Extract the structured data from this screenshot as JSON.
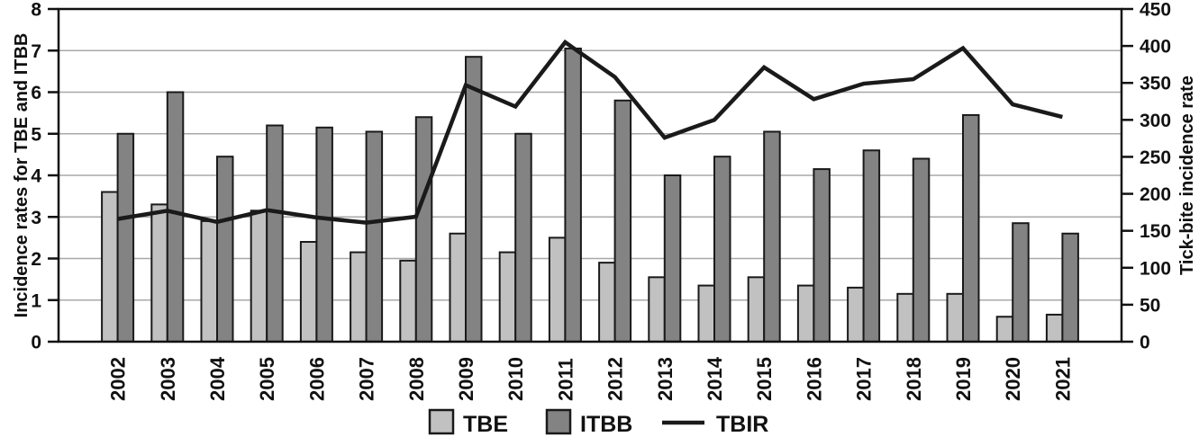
{
  "chart_data": {
    "type": "bar",
    "subtype": "grouped-bars-with-line-overlay",
    "categories": [
      "2002",
      "2003",
      "2004",
      "2005",
      "2006",
      "2007",
      "2008",
      "2009",
      "2010",
      "2011",
      "2012",
      "2013",
      "2014",
      "2015",
      "2016",
      "2017",
      "2018",
      "2019",
      "2020",
      "2021"
    ],
    "series": [
      {
        "name": "TBE",
        "type": "bar",
        "axis": "left",
        "color": "#c1c1c1",
        "values": [
          3.6,
          3.3,
          2.9,
          3.15,
          2.4,
          2.15,
          1.95,
          2.6,
          2.15,
          2.5,
          1.9,
          1.55,
          1.35,
          1.55,
          1.35,
          1.3,
          1.15,
          1.15,
          0.6,
          0.65
        ]
      },
      {
        "name": "ITBB",
        "type": "bar",
        "axis": "left",
        "color": "#838383",
        "values": [
          5.0,
          6.0,
          4.45,
          5.2,
          5.15,
          5.05,
          5.4,
          6.85,
          5.0,
          7.05,
          5.8,
          4.0,
          4.45,
          5.05,
          4.15,
          4.6,
          4.4,
          5.45,
          2.85,
          2.6
        ]
      },
      {
        "name": "TBIR",
        "type": "line",
        "axis": "right",
        "color": "#1a1a1a",
        "values": [
          166,
          177,
          162,
          178,
          168,
          161,
          169,
          347,
          318,
          405,
          358,
          276,
          300,
          371,
          328,
          349,
          355,
          397,
          321,
          304
        ]
      }
    ],
    "title": "",
    "xlabel": "",
    "ylabel_left": "Incidence rates for TBE and ITBB",
    "ylabel_right": "Tick-bite incidence rate",
    "left_axis": {
      "min": 0,
      "max": 8,
      "step": 1,
      "tick_labels": [
        "0",
        "1",
        "2",
        "3",
        "4",
        "5",
        "6",
        "7",
        "8"
      ]
    },
    "right_axis": {
      "min": 0,
      "max": 450,
      "step": 50,
      "tick_labels": [
        "0",
        "50",
        "100",
        "150",
        "200",
        "250",
        "300",
        "350",
        "400",
        "450"
      ]
    },
    "grid": true,
    "legend": [
      "TBE",
      "ITBB",
      "TBIR"
    ],
    "legend_position": "bottom-center"
  },
  "colors": {
    "tbe_fill": "#c1c1c1",
    "itbb_fill": "#838383",
    "line": "#1a1a1a",
    "gridline": "#a8a8a8",
    "frame": "#111111",
    "background": "#ffffff"
  }
}
